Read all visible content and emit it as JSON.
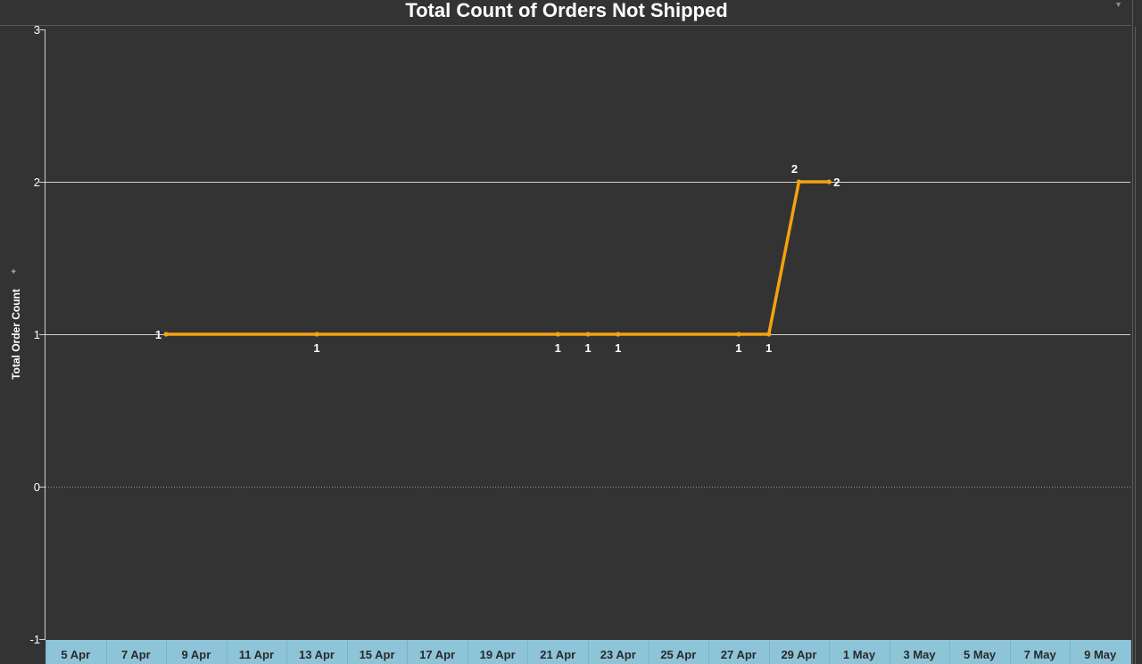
{
  "chart_data": {
    "type": "line",
    "title": "Total Count of Orders Not Shipped",
    "xlabel": "",
    "ylabel": "Total Order Count",
    "ylim": [
      -1,
      3
    ],
    "yticks": [
      3,
      2,
      1,
      0,
      -1
    ],
    "xlim": [
      "2024-04-04",
      "2024-05-10"
    ],
    "xticks": [
      {
        "date": "2024-04-05",
        "label": "5 Apr"
      },
      {
        "date": "2024-04-07",
        "label": "7 Apr"
      },
      {
        "date": "2024-04-09",
        "label": "9 Apr"
      },
      {
        "date": "2024-04-11",
        "label": "11 Apr"
      },
      {
        "date": "2024-04-13",
        "label": "13 Apr"
      },
      {
        "date": "2024-04-15",
        "label": "15 Apr"
      },
      {
        "date": "2024-04-17",
        "label": "17 Apr"
      },
      {
        "date": "2024-04-19",
        "label": "19 Apr"
      },
      {
        "date": "2024-04-21",
        "label": "21 Apr"
      },
      {
        "date": "2024-04-23",
        "label": "23 Apr"
      },
      {
        "date": "2024-04-25",
        "label": "25 Apr"
      },
      {
        "date": "2024-04-27",
        "label": "27 Apr"
      },
      {
        "date": "2024-04-29",
        "label": "29 Apr"
      },
      {
        "date": "2024-05-01",
        "label": "1 May"
      },
      {
        "date": "2024-05-03",
        "label": "3 May"
      },
      {
        "date": "2024-05-05",
        "label": "5 May"
      },
      {
        "date": "2024-05-07",
        "label": "7 May"
      },
      {
        "date": "2024-05-09",
        "label": "9 May"
      }
    ],
    "series": [
      {
        "color": "#f5a20f",
        "points": [
          {
            "date": "2024-04-08",
            "value": 1,
            "label": "1",
            "label_pos": "left"
          },
          {
            "date": "2024-04-13",
            "value": 1,
            "label": "1",
            "label_pos": "below"
          },
          {
            "date": "2024-04-21",
            "value": 1,
            "label": "1",
            "label_pos": "below"
          },
          {
            "date": "2024-04-22",
            "value": 1,
            "label": "1",
            "label_pos": "below"
          },
          {
            "date": "2024-04-23",
            "value": 1,
            "label": "1",
            "label_pos": "below"
          },
          {
            "date": "2024-04-27",
            "value": 1,
            "label": "1",
            "label_pos": "below"
          },
          {
            "date": "2024-04-28",
            "value": 1,
            "label": "1",
            "label_pos": "below"
          },
          {
            "date": "2024-04-29",
            "value": 2,
            "label": "2",
            "label_pos": "above"
          },
          {
            "date": "2024-04-30",
            "value": 2,
            "label": "2",
            "label_pos": "right"
          }
        ]
      }
    ],
    "grid": true,
    "zero_line": "dotted",
    "colors": {
      "background": "#333333",
      "gridline": "#d0d0d0",
      "axis_band": "#8ec4d8",
      "tick_text": "#2a2a2a",
      "text": "#ffffff"
    }
  }
}
